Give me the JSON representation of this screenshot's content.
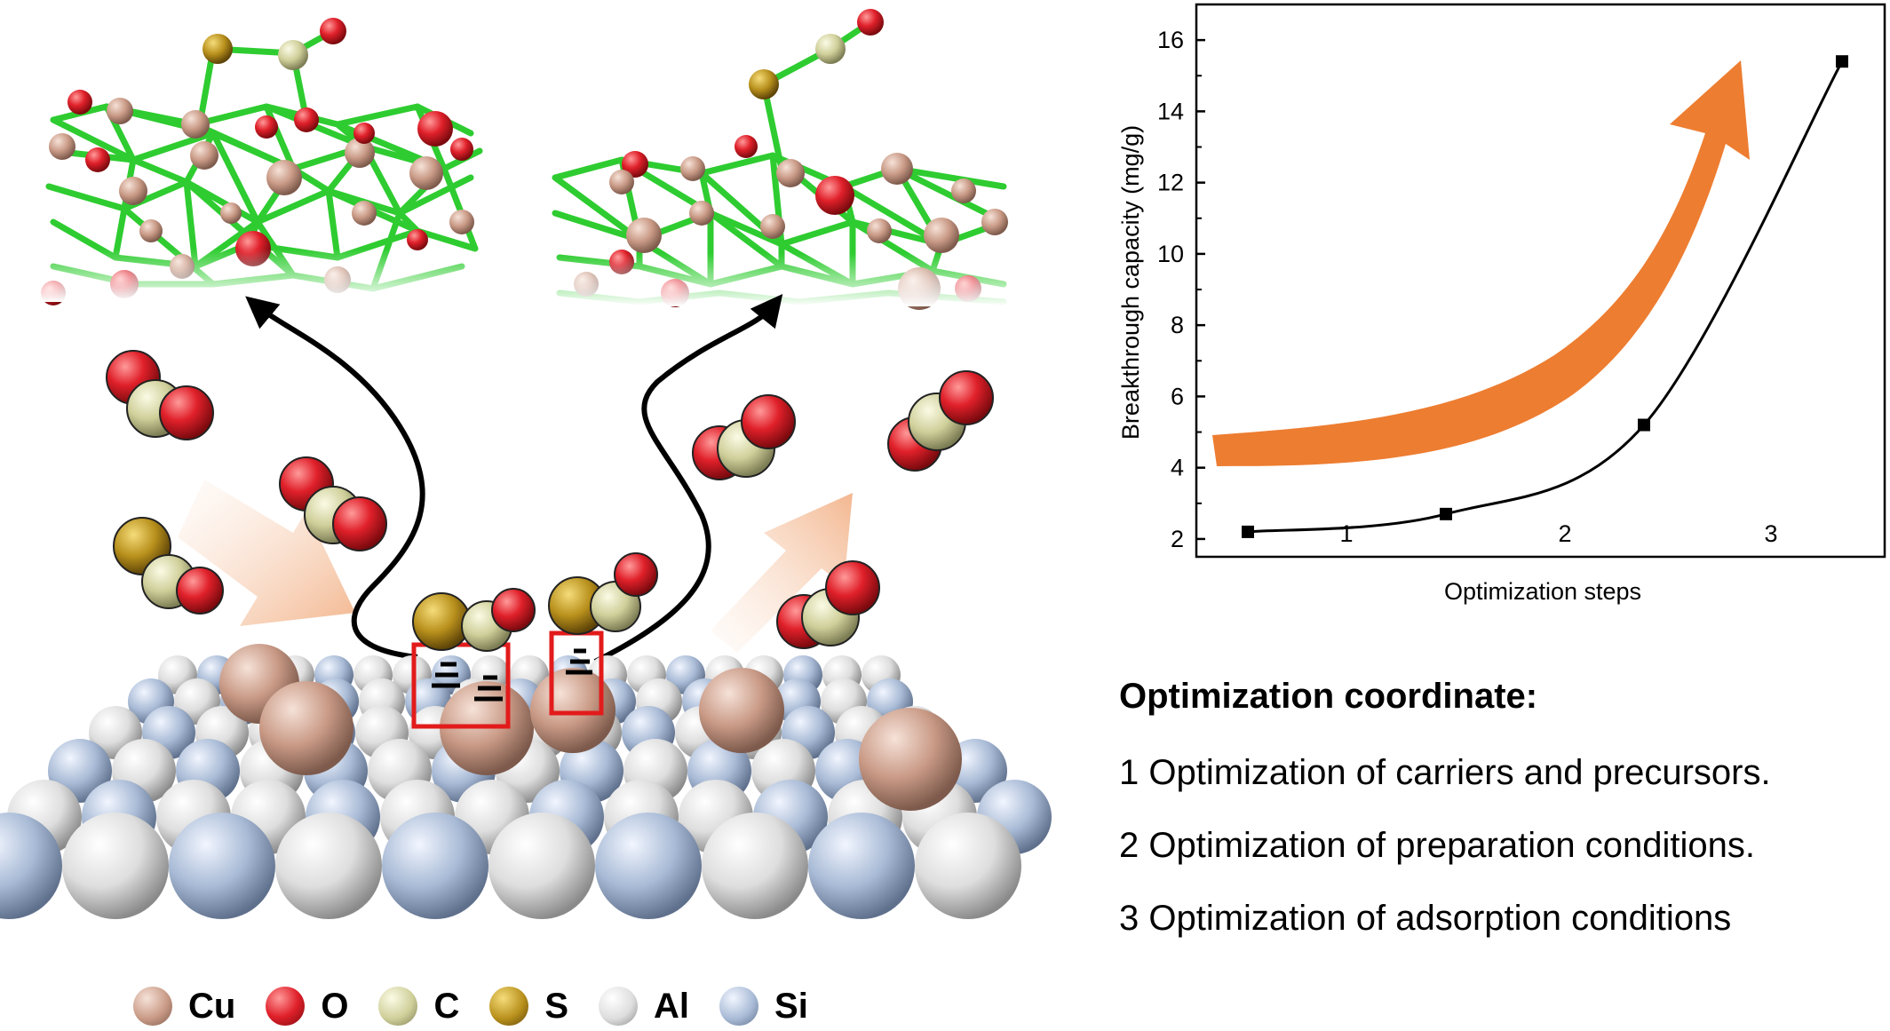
{
  "chart_data": {
    "type": "line",
    "x": [
      1,
      2,
      3,
      4
    ],
    "values": [
      2.2,
      2.7,
      5.2,
      15.4
    ],
    "x_tick_labels": [
      "1",
      "2",
      "3"
    ],
    "y_ticks": [
      2,
      4,
      6,
      8,
      10,
      12,
      14,
      16
    ],
    "ylim": [
      1.5,
      17
    ],
    "xlabel": "Optimization steps",
    "ylabel": "Breakthrough capacity (mg/g)",
    "grid": false,
    "marker": "square",
    "line_color": "#000000",
    "trend_arrow_color": "#ed7d31"
  },
  "coordinate": {
    "title": "Optimization coordinate:",
    "items": [
      "1 Optimization of carriers and precursors.",
      "2 Optimization of preparation conditions.",
      "3 Optimization of adsorption conditions"
    ]
  },
  "legend": [
    {
      "label": "Cu",
      "color": "#c99a86"
    },
    {
      "label": "O",
      "color": "#e0202a"
    },
    {
      "label": "C",
      "color": "#cfcf9a"
    },
    {
      "label": "S",
      "color": "#b8901c"
    },
    {
      "label": "Al",
      "color": "#e6e6e6"
    },
    {
      "label": "Si",
      "color": "#a9bbd6"
    }
  ],
  "colors": {
    "cu": "#c99a86",
    "oxygen": "#e0202a",
    "carbon": "#cfcf9a",
    "sulfur": "#b8901c",
    "aluminum": "#e6e6e6",
    "silicon": "#a9bbd6",
    "bond": "#2ecc30",
    "highlight_box": "#e21b1b",
    "flow_arrow": "#f5c8a8"
  }
}
